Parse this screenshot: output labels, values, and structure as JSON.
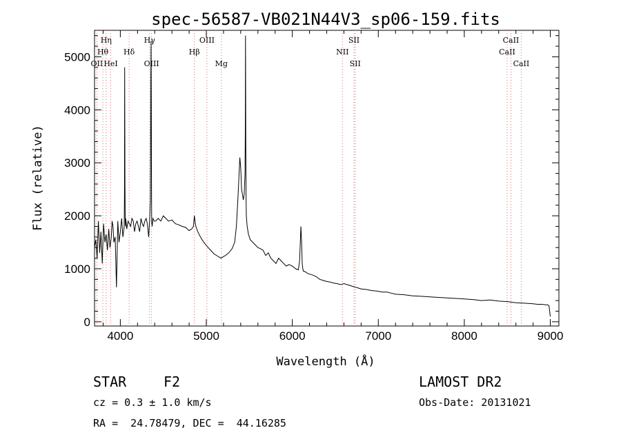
{
  "chart_data": {
    "type": "line",
    "title": "spec-56587-VB021N44V3_sp06-159.fits",
    "xlabel": "Wavelength (Å)",
    "ylabel": "Flux (relative)",
    "xlim": [
      3700,
      9100
    ],
    "ylim": [
      -80,
      5500
    ],
    "xticks": [
      4000,
      5000,
      6000,
      7000,
      8000,
      9000
    ],
    "yticks": [
      0,
      1000,
      2000,
      3000,
      4000,
      5000
    ],
    "grid": false,
    "series": [
      {
        "x": [
          3700,
          3715,
          3730,
          3745,
          3760,
          3775,
          3790,
          3805,
          3820,
          3835,
          3850,
          3865,
          3880,
          3895,
          3905,
          3915,
          3925,
          3940,
          3955,
          3970,
          3985,
          4000,
          4015,
          4030,
          4045,
          4048,
          4051,
          4054,
          4057,
          4060,
          4063,
          4075,
          4090,
          4105,
          4120,
          4135,
          4150,
          4165,
          4180,
          4195,
          4210,
          4225,
          4240,
          4255,
          4270,
          4285,
          4300,
          4315,
          4330,
          4340,
          4350,
          4355,
          4358,
          4361,
          4364,
          4367,
          4370,
          4380,
          4395,
          4410,
          4440,
          4470,
          4500,
          4530,
          4560,
          4600,
          4640,
          4680,
          4720,
          4760,
          4800,
          4830,
          4850,
          4861,
          4875,
          4900,
          4925,
          4950,
          4980,
          5010,
          5050,
          5090,
          5130,
          5170,
          5200,
          5230,
          5260,
          5300,
          5330,
          5350,
          5370,
          5390,
          5400,
          5410,
          5420,
          5430,
          5440,
          5450,
          5453,
          5456,
          5459,
          5462,
          5465,
          5475,
          5490,
          5510,
          5540,
          5570,
          5600,
          5630,
          5660,
          5690,
          5720,
          5750,
          5780,
          5810,
          5840,
          5870,
          5900,
          5930,
          5960,
          6000,
          6040,
          6070,
          6085,
          6100,
          6108,
          6115,
          6122,
          6130,
          6145,
          6170,
          6200,
          6240,
          6280,
          6320,
          6360,
          6400,
          6440,
          6480,
          6520,
          6563,
          6600,
          6640,
          6680,
          6720,
          6760,
          6800,
          6860,
          6920,
          6980,
          7050,
          7100,
          7150,
          7200,
          7300,
          7400,
          7500,
          7600,
          7700,
          7800,
          7900,
          8000,
          8100,
          8200,
          8300,
          8400,
          8500,
          8600,
          8700,
          8800,
          8850,
          8900,
          8950,
          8970,
          8985,
          9000
        ],
        "values": [
          1400,
          1550,
          1200,
          1900,
          1300,
          1700,
          1100,
          1850,
          1500,
          1650,
          1350,
          1750,
          1400,
          1600,
          1900,
          1800,
          1500,
          1600,
          650,
          1900,
          1500,
          1700,
          1950,
          1600,
          1800,
          2400,
          4800,
          2600,
          1900,
          1800,
          1950,
          1750,
          1900,
          1850,
          1800,
          1950,
          1900,
          1700,
          1850,
          1900,
          1800,
          1700,
          1950,
          1850,
          1800,
          1900,
          1950,
          1850,
          1600,
          1900,
          2300,
          4600,
          5300,
          3200,
          1900,
          1850,
          1800,
          1950,
          1900,
          1900,
          1950,
          1900,
          2000,
          1950,
          1900,
          1920,
          1850,
          1830,
          1800,
          1780,
          1720,
          1750,
          1800,
          2000,
          1820,
          1700,
          1620,
          1550,
          1480,
          1420,
          1350,
          1280,
          1240,
          1200,
          1230,
          1260,
          1300,
          1380,
          1500,
          1800,
          2400,
          3100,
          2900,
          2500,
          2400,
          2300,
          2400,
          2800,
          3600,
          5400,
          3500,
          2400,
          2000,
          1800,
          1650,
          1550,
          1500,
          1450,
          1400,
          1380,
          1350,
          1250,
          1300,
          1200,
          1150,
          1100,
          1200,
          1150,
          1100,
          1050,
          1080,
          1050,
          1000,
          980,
          1150,
          1800,
          1500,
          1100,
          1000,
          950,
          950,
          920,
          900,
          880,
          850,
          800,
          780,
          760,
          750,
          730,
          720,
          700,
          720,
          700,
          680,
          660,
          640,
          620,
          610,
          590,
          580,
          560,
          560,
          540,
          520,
          510,
          490,
          480,
          470,
          460,
          450,
          440,
          430,
          420,
          400,
          410,
          390,
          380,
          360,
          350,
          340,
          330,
          330,
          320,
          320,
          300,
          100
        ]
      }
    ],
    "spectral_lines": [
      {
        "label": "Hη",
        "wavelength": 3835,
        "row": 1
      },
      {
        "label": "Hθ",
        "wavelength": 3797,
        "row": 2
      },
      {
        "label": "OII",
        "wavelength": 3727,
        "row": 3
      },
      {
        "label": "HeI",
        "wavelength": 3889,
        "row": 3
      },
      {
        "label": "Hδ",
        "wavelength": 4102,
        "row": 2
      },
      {
        "label": "Hγ",
        "wavelength": 4340,
        "row": 1
      },
      {
        "label": "OIII",
        "wavelength": 4363,
        "row": 3
      },
      {
        "label": "OIII",
        "wavelength": 5007,
        "row": 1
      },
      {
        "label": "Hβ",
        "wavelength": 4861,
        "row": 2
      },
      {
        "label": "Mg",
        "wavelength": 5175,
        "row": 3
      },
      {
        "label": "SII",
        "wavelength": 6717,
        "row": 1
      },
      {
        "label": "NII",
        "wavelength": 6583,
        "row": 2
      },
      {
        "label": "SII",
        "wavelength": 6731,
        "row": 3
      },
      {
        "label": "CaII",
        "wavelength": 8542,
        "row": 1
      },
      {
        "label": "CaII",
        "wavelength": 8498,
        "row": 2
      },
      {
        "label": "CaII",
        "wavelength": 8662,
        "row": 3
      }
    ]
  },
  "info": {
    "class": "STAR",
    "subclass": "F2",
    "survey": "LAMOST DR2",
    "cz": "cz = 0.3 ± 1.0 km/s",
    "obs_date": "Obs-Date: 20131021",
    "coords": "RA =  24.78479, DEC =  44.16285"
  }
}
